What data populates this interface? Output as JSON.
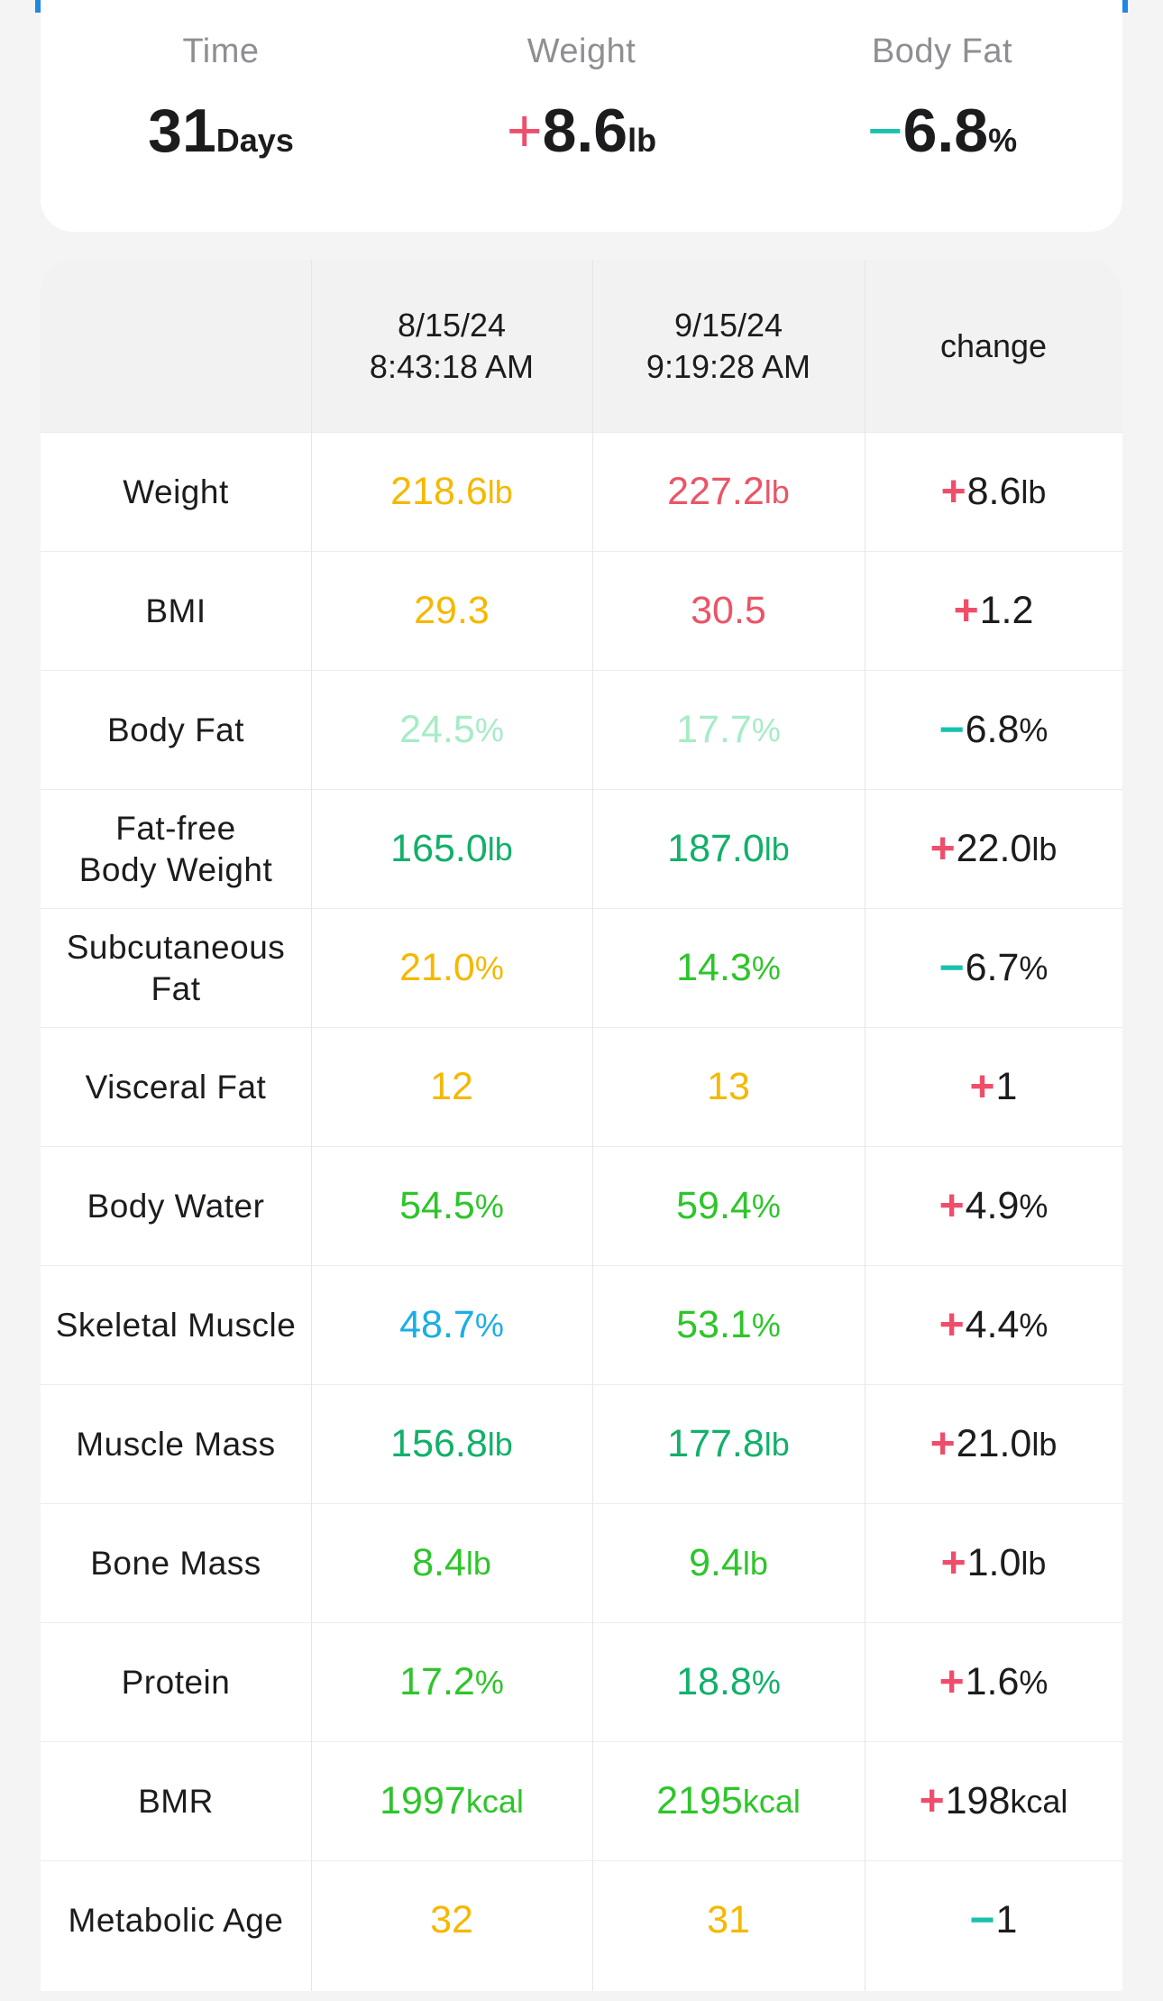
{
  "summary": {
    "time": {
      "label": "Time",
      "value": "31",
      "unit": "Days",
      "sign": ""
    },
    "weight": {
      "label": "Weight",
      "sign": "+",
      "value": "8.6",
      "unit": "lb"
    },
    "body_fat": {
      "label": "Body Fat",
      "sign": "−",
      "value": "6.8",
      "unit": "%"
    }
  },
  "table": {
    "header": {
      "date1": "8/15/24",
      "time1": "8:43:18 AM",
      "date2": "9/15/24",
      "time2": "9:19:28 AM",
      "change": "change"
    },
    "rows": [
      {
        "metric": "Weight",
        "v1": "218.6",
        "v1_unit": "lb",
        "v1_color": "#f5b800",
        "v2": "227.2",
        "v2_unit": "lb",
        "v2_color": "#ea5566",
        "sign": "+",
        "sign_color": "#ef4e6b",
        "change": "8.6",
        "change_unit": "lb"
      },
      {
        "metric": "BMI",
        "v1": "29.3",
        "v1_unit": "",
        "v1_color": "#f5b800",
        "v2": "30.5",
        "v2_unit": "",
        "v2_color": "#ea5566",
        "sign": "+",
        "sign_color": "#ef4e6b",
        "change": "1.2",
        "change_unit": ""
      },
      {
        "metric": "Body Fat",
        "v1": "24.5",
        "v1_unit": "%",
        "v1_color": "#a6ecc6",
        "v2": "17.7",
        "v2_unit": "%",
        "v2_color": "#a6ecc6",
        "sign": "−",
        "sign_color": "#18c1ad",
        "change": "6.8",
        "change_unit": "%"
      },
      {
        "metric": "Fat-free\nBody Weight",
        "v1": "165.0",
        "v1_unit": "lb",
        "v1_color": "#12b06a",
        "v2": "187.0",
        "v2_unit": "lb",
        "v2_color": "#12b06a",
        "sign": "+",
        "sign_color": "#ef4e6b",
        "change": "22.0",
        "change_unit": "lb"
      },
      {
        "metric": "Subcutaneous\nFat",
        "v1": "21.0",
        "v1_unit": "%",
        "v1_color": "#f5b800",
        "v2": "14.3",
        "v2_unit": "%",
        "v2_color": "#2ec52a",
        "sign": "−",
        "sign_color": "#18c1ad",
        "change": "6.7",
        "change_unit": "%"
      },
      {
        "metric": "Visceral Fat",
        "v1": "12",
        "v1_unit": "",
        "v1_color": "#f5b800",
        "v2": "13",
        "v2_unit": "",
        "v2_color": "#f5b800",
        "sign": "+",
        "sign_color": "#ef4e6b",
        "change": "1",
        "change_unit": ""
      },
      {
        "metric": "Body Water",
        "v1": "54.5",
        "v1_unit": "%",
        "v1_color": "#2ec52a",
        "v2": "59.4",
        "v2_unit": "%",
        "v2_color": "#2ec52a",
        "sign": "+",
        "sign_color": "#ef4e6b",
        "change": "4.9",
        "change_unit": "%"
      },
      {
        "metric": "Skeletal Muscle",
        "v1": "48.7",
        "v1_unit": "%",
        "v1_color": "#1aaee6",
        "v2": "53.1",
        "v2_unit": "%",
        "v2_color": "#2ec52a",
        "sign": "+",
        "sign_color": "#ef4e6b",
        "change": "4.4",
        "change_unit": "%"
      },
      {
        "metric": "Muscle Mass",
        "v1": "156.8",
        "v1_unit": "lb",
        "v1_color": "#12b06a",
        "v2": "177.8",
        "v2_unit": "lb",
        "v2_color": "#12b06a",
        "sign": "+",
        "sign_color": "#ef4e6b",
        "change": "21.0",
        "change_unit": "lb"
      },
      {
        "metric": "Bone Mass",
        "v1": "8.4",
        "v1_unit": "lb",
        "v1_color": "#2ec52a",
        "v2": "9.4",
        "v2_unit": "lb",
        "v2_color": "#2ec52a",
        "sign": "+",
        "sign_color": "#ef4e6b",
        "change": "1.0",
        "change_unit": "lb"
      },
      {
        "metric": "Protein",
        "v1": "17.2",
        "v1_unit": "%",
        "v1_color": "#2ec52a",
        "v2": "18.8",
        "v2_unit": "%",
        "v2_color": "#12b06a",
        "sign": "+",
        "sign_color": "#ef4e6b",
        "change": "1.6",
        "change_unit": "%"
      },
      {
        "metric": "BMR",
        "v1": "1997",
        "v1_unit": "kcal",
        "v1_color": "#2ec52a",
        "v2": "2195",
        "v2_unit": "kcal",
        "v2_color": "#2ec52a",
        "sign": "+",
        "sign_color": "#ef4e6b",
        "change": "198",
        "change_unit": "kcal"
      },
      {
        "metric": "Metabolic Age",
        "v1": "32",
        "v1_unit": "",
        "v1_color": "#f5b800",
        "v2": "31",
        "v2_unit": "",
        "v2_color": "#f5b800",
        "sign": "−",
        "sign_color": "#18c1ad",
        "change": "1",
        "change_unit": ""
      }
    ]
  }
}
